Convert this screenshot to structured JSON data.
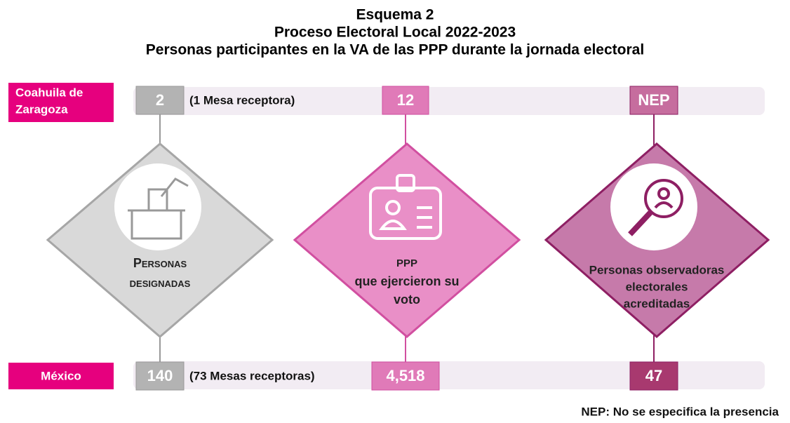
{
  "title": {
    "line1": "Esquema 2",
    "line2": "Proceso Electoral Local 2022-2023",
    "line3": "Personas participantes en la VA de las PPP durante la jornada electoral"
  },
  "top_row": {
    "entity": [
      "Coahuila de",
      "Zaragoza"
    ],
    "designated": "2",
    "tables": "(1 Mesa receptora)",
    "voters": "12",
    "observers": "NEP"
  },
  "bottom_row": {
    "entity": "México",
    "designated": "140",
    "tables": "(73 Mesas receptoras)",
    "voters": "4,518",
    "observers": "47"
  },
  "diamonds": [
    {
      "lines": [
        "Personas",
        "designadas"
      ]
    },
    {
      "lines": [
        "PPP",
        "que ejercieron su",
        "voto"
      ]
    },
    {
      "lines": [
        "Personas observadoras",
        "electorales",
        "acreditadas"
      ]
    }
  ],
  "footnote": "NEP: No se especifica la presencia"
}
